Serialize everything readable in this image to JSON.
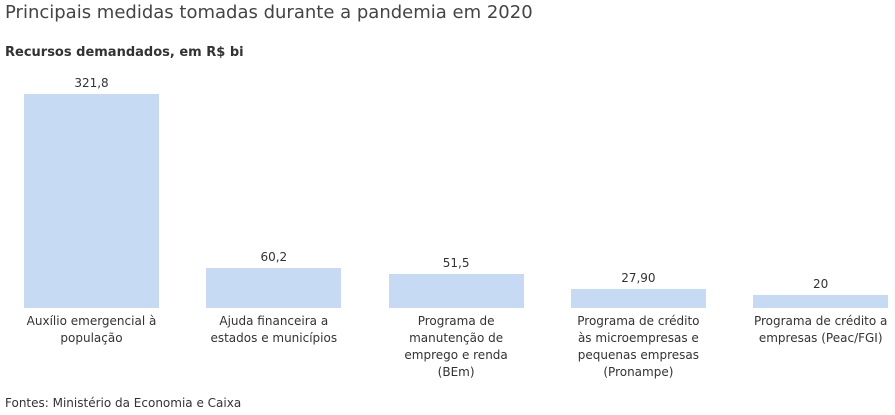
{
  "chart_data": {
    "type": "bar",
    "title": "Principais medidas tomadas durante a pandemia em 2020",
    "subtitle": "Recursos demandados, em R$ bi",
    "categories": [
      "Auxílio emergencial à\npopulação",
      "Ajuda financeira a\nestados e municípios",
      "Programa de\nmanutenção de\nemprego e renda\n(BEm)",
      "Programa de crédito\nàs microempresas e\npequenas empresas\n(Pronampe)",
      "Programa de crédito a\nempresas (Peac/FGI)"
    ],
    "values": [
      321.8,
      60.2,
      51.5,
      27.9,
      20
    ],
    "value_labels": [
      "321,8",
      "60,2",
      "51,5",
      "27,90",
      "20"
    ],
    "xlabel": "",
    "ylabel": "",
    "ylim": [
      0,
      321.8
    ],
    "grid": false,
    "bar_color": "#c6dbf3",
    "source": "Fontes: Ministério da Economia e Caixa"
  }
}
